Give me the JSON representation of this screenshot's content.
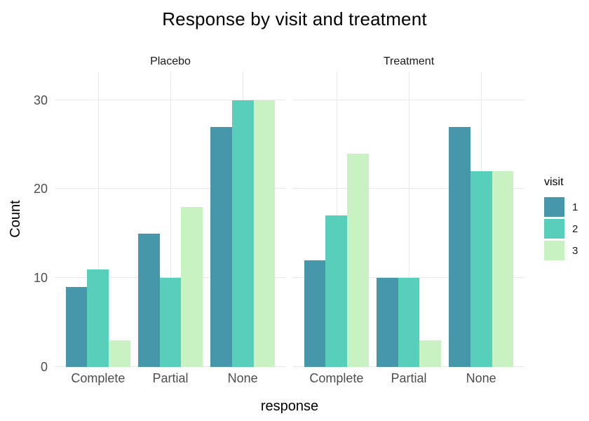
{
  "chart_data": {
    "type": "bar",
    "title": "Response by visit and treatment",
    "xlabel": "response",
    "ylabel": "Count",
    "categories": [
      "Complete",
      "Partial",
      "None"
    ],
    "facets": [
      {
        "label": "Placebo",
        "series": [
          {
            "name": "1",
            "values": [
              9,
              15,
              27
            ]
          },
          {
            "name": "2",
            "values": [
              11,
              10,
              30
            ]
          },
          {
            "name": "3",
            "values": [
              3,
              18,
              30
            ]
          }
        ]
      },
      {
        "label": "Treatment",
        "series": [
          {
            "name": "1",
            "values": [
              12,
              10,
              27
            ]
          },
          {
            "name": "2",
            "values": [
              17,
              10,
              22
            ]
          },
          {
            "name": "3",
            "values": [
              24,
              3,
              22
            ]
          }
        ]
      }
    ],
    "legend": {
      "title": "visit",
      "position": "right",
      "entries": [
        {
          "label": "1",
          "color": "#4597a9"
        },
        {
          "label": "2",
          "color": "#57cfba"
        },
        {
          "label": "3",
          "color": "#c9f2c3"
        }
      ]
    },
    "yticks": [
      0,
      10,
      20,
      30
    ],
    "ylim": [
      0,
      33.2
    ],
    "grid": true,
    "grid_color": "#e8e8e8",
    "axis_text_color": "#4d4d4d",
    "text_color": "#000000",
    "background": "#ffffff"
  }
}
